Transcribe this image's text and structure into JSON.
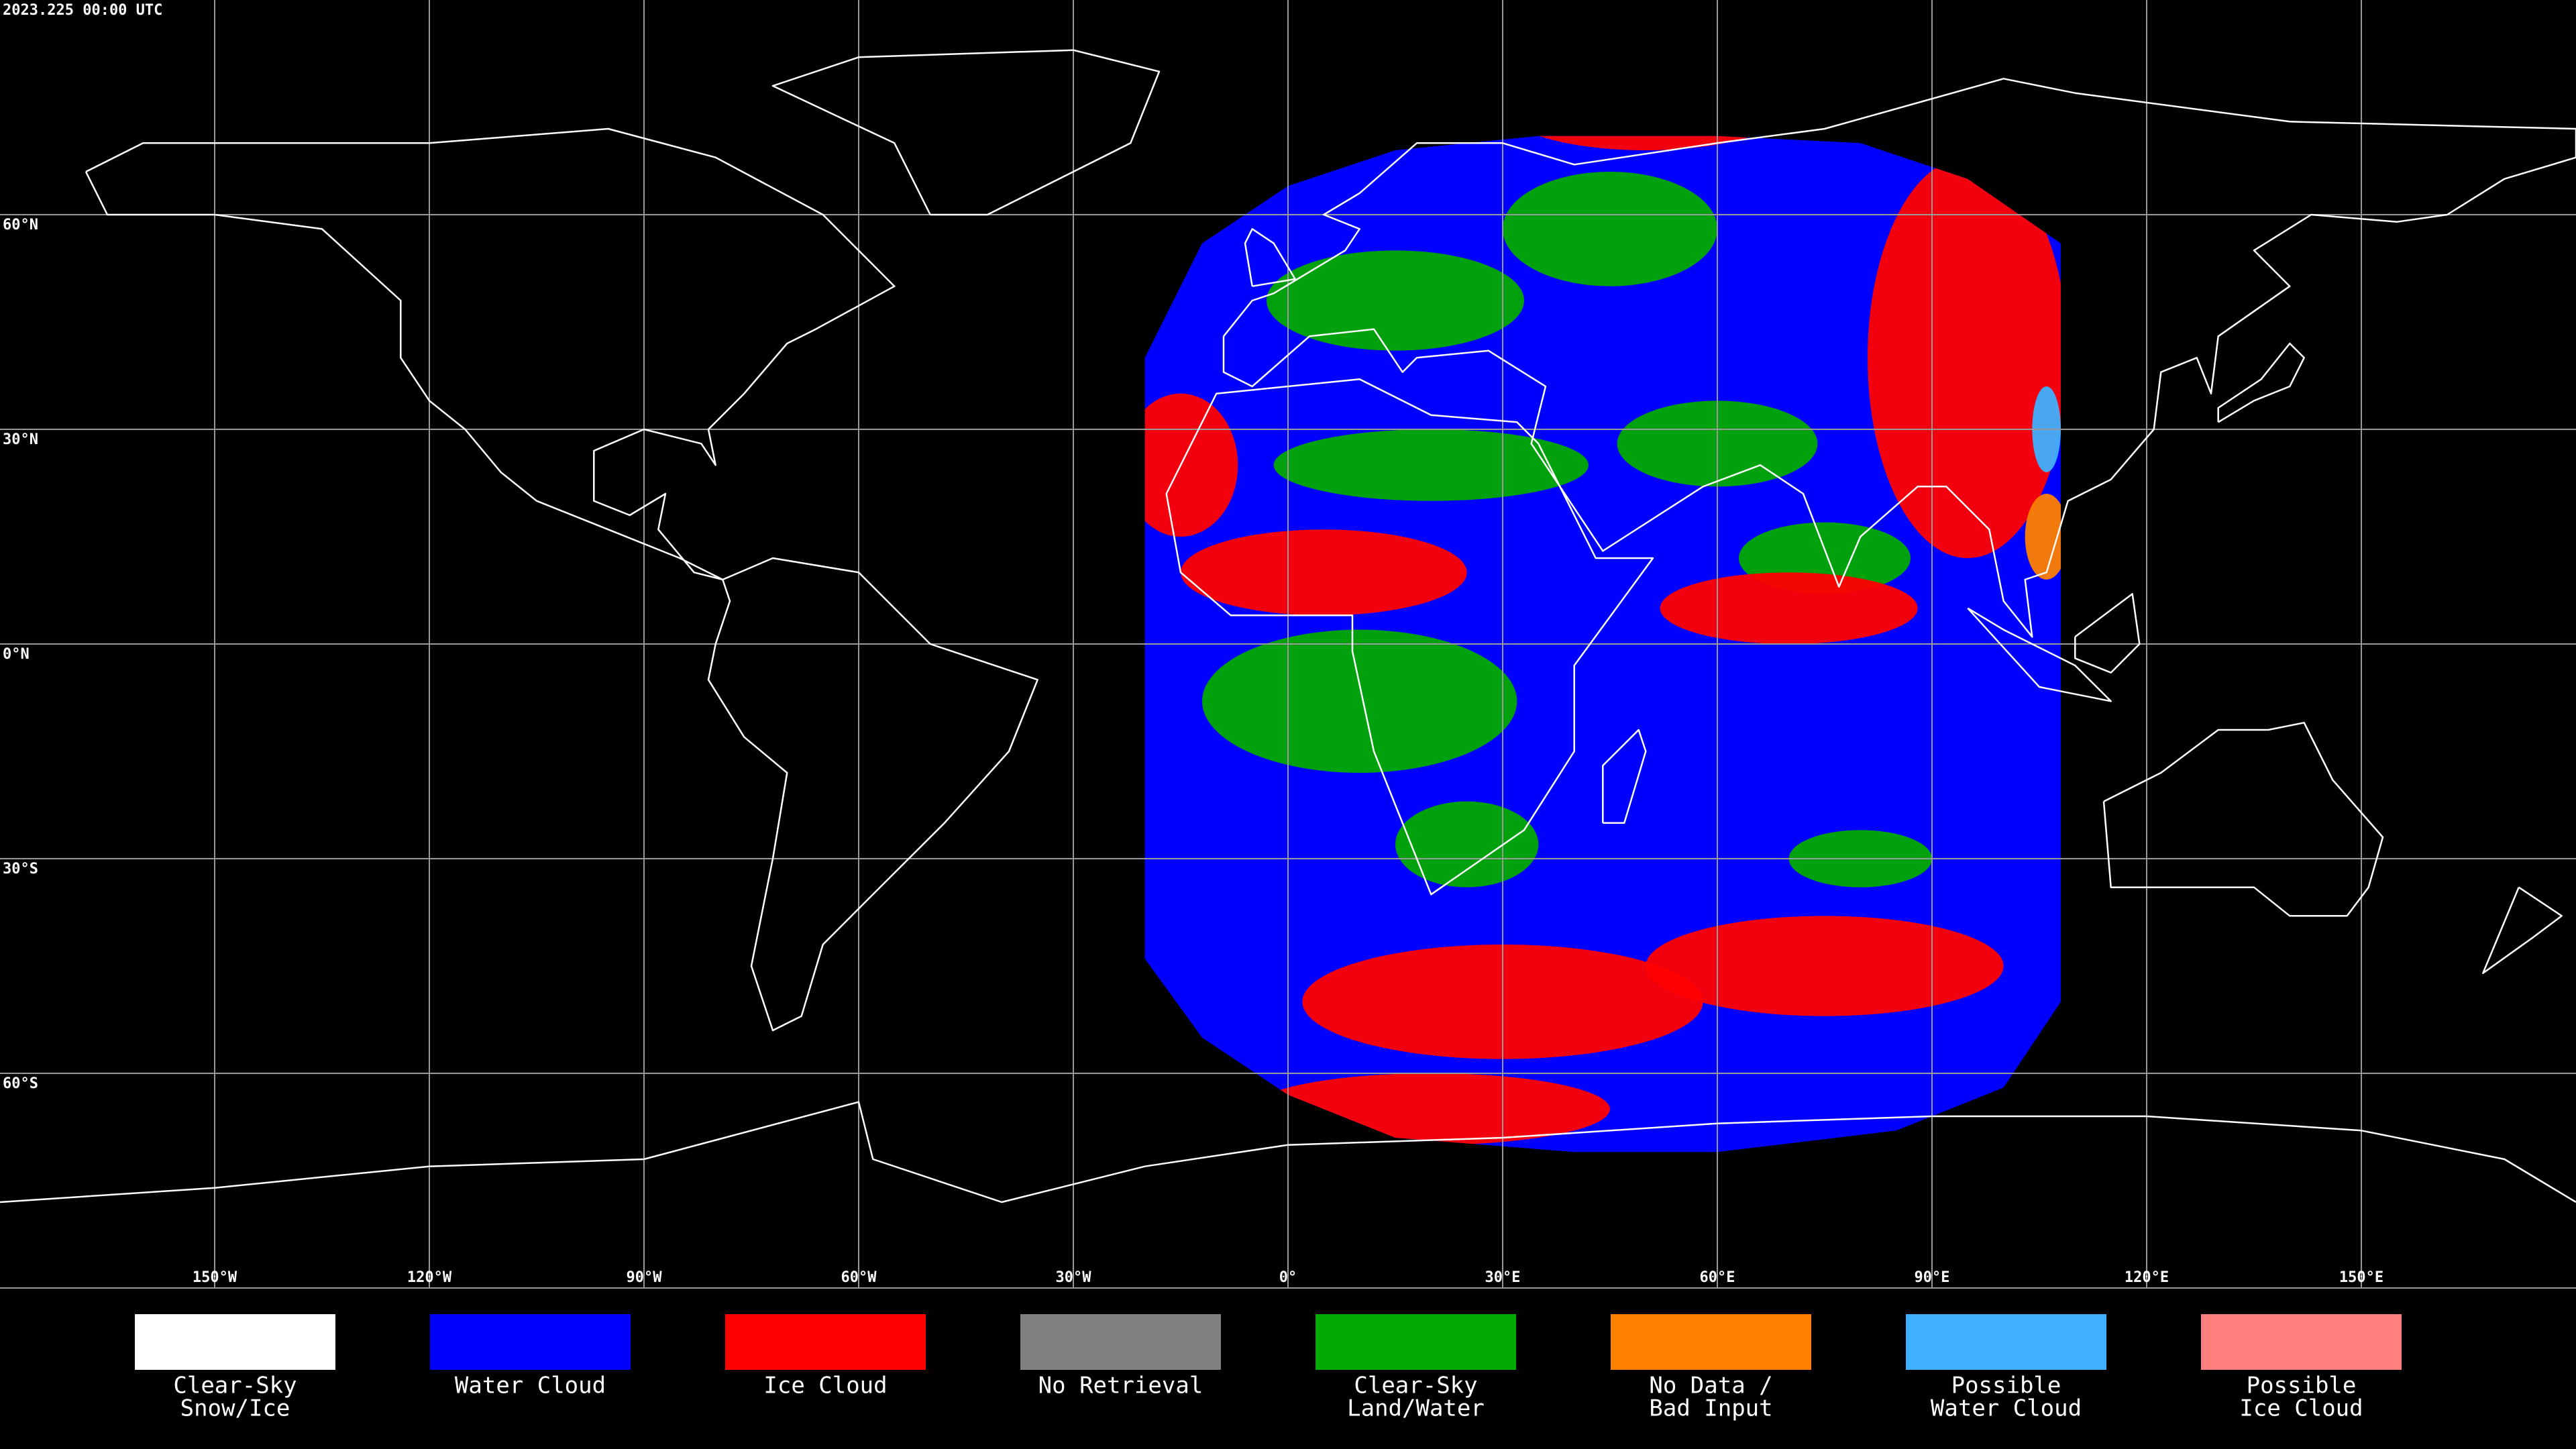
{
  "header": {
    "title": "2023.225 00:00 UTC"
  },
  "map": {
    "lat_labels": [
      "60°N",
      "30°N",
      "0°N",
      "30°S",
      "60°S"
    ],
    "lon_labels": [
      "150°W",
      "120°W",
      "90°W",
      "60°W",
      "30°W",
      "0°",
      "30°E",
      "60°E",
      "90°E",
      "120°E",
      "150°E"
    ]
  },
  "legend": [
    {
      "label": [
        "Clear-Sky",
        "Snow/Ice"
      ],
      "color": "#ffffff"
    },
    {
      "label": [
        "Water Cloud"
      ],
      "color": "#0000ff"
    },
    {
      "label": [
        "Ice Cloud"
      ],
      "color": "#ff0000"
    },
    {
      "label": [
        "No Retrieval"
      ],
      "color": "#808080"
    },
    {
      "label": [
        "Clear-Sky",
        "Land/Water"
      ],
      "color": "#00aa00"
    },
    {
      "label": [
        "No Data /",
        "Bad Input"
      ],
      "color": "#ff8000"
    },
    {
      "label": [
        "Possible",
        "Water Cloud"
      ],
      "color": "#3fb0ff"
    },
    {
      "label": [
        "Possible",
        "Ice Cloud"
      ],
      "color": "#ff7f7f"
    }
  ]
}
